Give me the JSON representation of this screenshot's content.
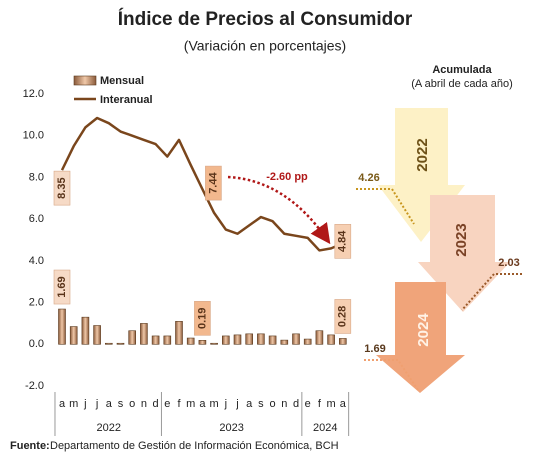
{
  "chart_data": {
    "type": "bar_line",
    "title": "Índice de Precios al Consumidor",
    "subtitle": "(Variación en porcentajes)",
    "categories": [
      "a",
      "m",
      "j",
      "j",
      "a",
      "s",
      "o",
      "n",
      "d",
      "e",
      "f",
      "m",
      "a",
      "m",
      "j",
      "j",
      "a",
      "s",
      "o",
      "n",
      "d",
      "e",
      "f",
      "m",
      "a"
    ],
    "years": [
      {
        "label": "2022",
        "span": 9
      },
      {
        "label": "2023",
        "span": 12
      },
      {
        "label": "2024",
        "span": 4
      }
    ],
    "series": [
      {
        "name": "Mensual",
        "kind": "bar",
        "color": "#c8916a",
        "values": [
          1.69,
          0.85,
          1.3,
          0.9,
          0.05,
          0.05,
          0.65,
          1.0,
          0.4,
          0.4,
          1.1,
          0.3,
          0.19,
          0.05,
          0.4,
          0.45,
          0.5,
          0.5,
          0.4,
          0.2,
          0.5,
          0.25,
          0.65,
          0.45,
          0.28
        ],
        "value_labels": [
          "1.69",
          null,
          null,
          null,
          null,
          null,
          null,
          null,
          null,
          null,
          null,
          null,
          "0.19",
          null,
          null,
          null,
          null,
          null,
          null,
          null,
          null,
          null,
          null,
          null,
          "0.28"
        ]
      },
      {
        "name": "Interanual",
        "kind": "line",
        "color": "#7a461c",
        "values": [
          8.35,
          9.5,
          10.4,
          10.85,
          10.6,
          10.2,
          10.0,
          9.8,
          9.6,
          9.0,
          9.8,
          8.6,
          7.44,
          6.3,
          5.5,
          5.3,
          5.7,
          6.1,
          5.9,
          5.3,
          5.2,
          5.1,
          4.5,
          4.6,
          4.84
        ],
        "value_labels": [
          "8.35",
          null,
          null,
          null,
          null,
          null,
          null,
          null,
          null,
          null,
          null,
          null,
          "7.44",
          null,
          null,
          null,
          null,
          null,
          null,
          null,
          null,
          null,
          null,
          null,
          "4.84"
        ]
      }
    ],
    "ylim": [
      -2,
      12
    ],
    "yticks": [
      {
        "value": 12,
        "label": "12.0"
      },
      {
        "value": 10,
        "label": "10.0"
      },
      {
        "value": 8,
        "label": "8.0"
      },
      {
        "value": 6,
        "label": "6.0"
      },
      {
        "value": 4,
        "label": "4.0"
      },
      {
        "value": 2,
        "label": "2.0"
      },
      {
        "value": 0,
        "label": "0.0"
      },
      {
        "value": -2,
        "label": "-2.0"
      }
    ],
    "grid": false,
    "annotation": "-2.60 pp",
    "accumulated": {
      "title": "Acumulada",
      "subtitle": "(A abril de cada año)",
      "items": [
        {
          "year": "2022",
          "value": 4.26
        },
        {
          "year": "2023",
          "value": 2.03
        },
        {
          "year": "2024",
          "value": 1.69
        }
      ]
    },
    "source": {
      "label": "Fuente:",
      "text": "Departamento de Gestión de Información Económica, BCH"
    }
  }
}
